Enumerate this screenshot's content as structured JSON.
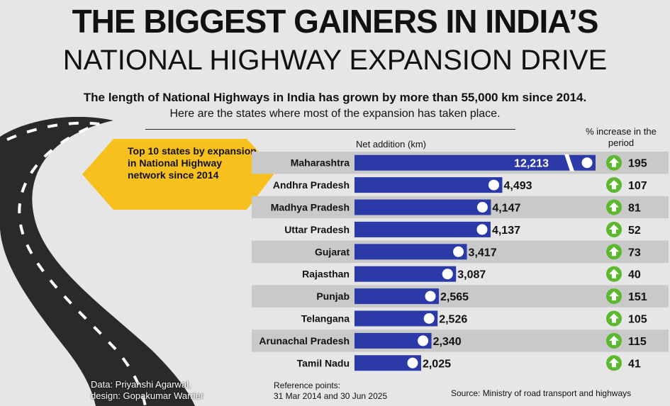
{
  "title": {
    "line1": "THE BIGGEST GAINERS IN INDIA’S",
    "line2": "NATIONAL HIGHWAY EXPANSION DRIVE"
  },
  "subtitle": {
    "line1": "The length of National Highways in India has grown by more than 55,000 km since 2014.",
    "line2": "Here are the states where most of the expansion has taken place."
  },
  "callout": "Top 10 states by expansion in National Highway network since 2014",
  "headers": {
    "net_addition": "Net addition (km)",
    "pct_increase": "% increase in the period"
  },
  "footer": {
    "credit_line1": "Data: Priyanshi Agarwal,",
    "credit_line2": "design: Gopakumar Warrier",
    "ref_line1": "Reference points:",
    "ref_line2": "31 Mar 2014 and 30 Jun 2025",
    "source": "Source: Ministry of road transport and highways"
  },
  "colors": {
    "bar": "#2b3aa8",
    "row_shade": "#c9c9c9",
    "callout": "#f7c01c",
    "arrow_circle": "#5cb82e",
    "road": "#2a2a2a"
  },
  "chart_data": {
    "type": "bar",
    "orientation": "horizontal",
    "categories": [
      "Maharashtra",
      "Andhra Pradesh",
      "Madhya Pradesh",
      "Uttar Pradesh",
      "Gujarat",
      "Rajasthan",
      "Punjab",
      "Telangana",
      "Arunachal Pradesh",
      "Tamil Nadu"
    ],
    "series": [
      {
        "values": [
          12213,
          4493,
          4147,
          4137,
          3417,
          3087,
          2565,
          2526,
          2340,
          2025
        ]
      },
      {
        "values": [
          195,
          107,
          81,
          52,
          73,
          40,
          151,
          105,
          115,
          41
        ]
      }
    ],
    "value_labels": [
      "12,213",
      "4,493",
      "4,147",
      "4,137",
      "3,417",
      "3,087",
      "2,565",
      "2,526",
      "2,340",
      "2,025"
    ],
    "pct_labels": [
      "195",
      "107",
      "81",
      "52",
      "73",
      "40",
      "151",
      "105",
      "115",
      "41"
    ],
    "axis_break": true,
    "grid": false
  }
}
